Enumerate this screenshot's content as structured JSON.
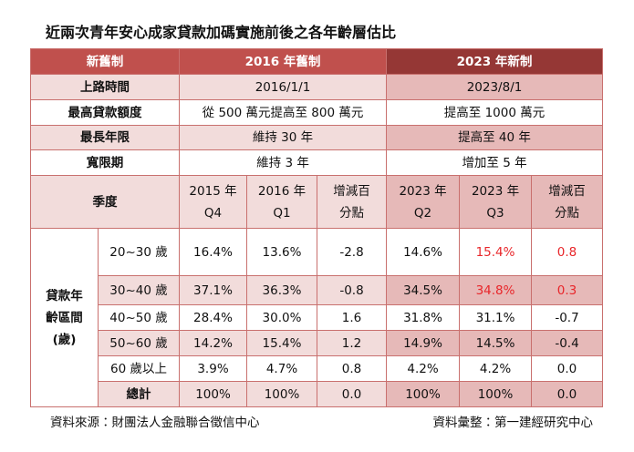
{
  "title": "近兩次青年安心成家貸款加碼實施前後之各年齡層估比",
  "table": {
    "header": [
      "新舊制",
      "2016 年舊制",
      "2023 年新制"
    ],
    "policy_rows": [
      [
        "上路時間",
        "2016/1/1",
        "2023/8/1"
      ],
      [
        "最高貸款額度",
        "從 500 萬元提高至 800 萬元",
        "提高至 1000 萬元"
      ],
      [
        "最長年限",
        "維持 30 年",
        "提高至 40 年"
      ],
      [
        "寬限期",
        "維持 3 年",
        "增加至 5 年"
      ]
    ],
    "quarter_label": "季度",
    "quarter_columns": [
      [
        "2015 年",
        "Q4"
      ],
      [
        "2016 年",
        "Q1"
      ],
      [
        "增減百",
        "分點"
      ],
      [
        "2023 年",
        "Q2"
      ],
      [
        "2023 年",
        "Q3"
      ],
      [
        "增減百",
        "分點"
      ]
    ],
    "group_label": [
      "貸款年",
      "齡區間",
      "(歲)"
    ],
    "rows": [
      [
        "20~30 歲",
        "16.4%",
        "13.6%",
        "-2.8",
        "14.6%",
        "15.4%",
        "0.8"
      ],
      [
        "30~40 歲",
        "37.1%",
        "36.3%",
        "-0.8",
        "34.5%",
        "34.8%",
        "0.3"
      ],
      [
        "40~50 歲",
        "28.4%",
        "30.0%",
        "1.6",
        "31.8%",
        "31.1%",
        "-0.7"
      ],
      [
        "50~60 歲",
        "14.2%",
        "15.4%",
        "1.2",
        "14.9%",
        "14.5%",
        "-0.4"
      ],
      [
        "60 歲以上",
        "3.9%",
        "4.7%",
        "0.8",
        "4.2%",
        "4.2%",
        "0.0"
      ],
      [
        "總計",
        "100%",
        "100%",
        "0.0",
        "100%",
        "100%",
        "0.0"
      ]
    ]
  },
  "footer": {
    "source": "資料來源：財團法人金融聯合徵信中心",
    "compiled_by": "資料彙整：第一建經研究中心"
  }
}
